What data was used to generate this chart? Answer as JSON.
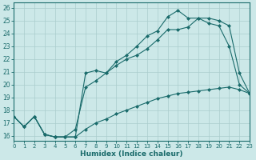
{
  "xlabel": "Humidex (Indice chaleur)",
  "ylabel": "",
  "xlim": [
    0,
    23
  ],
  "ylim": [
    15.6,
    26.4
  ],
  "yticks": [
    16,
    17,
    18,
    19,
    20,
    21,
    22,
    23,
    24,
    25,
    26
  ],
  "xticks": [
    0,
    1,
    2,
    3,
    4,
    5,
    6,
    7,
    8,
    9,
    10,
    11,
    12,
    13,
    14,
    15,
    16,
    17,
    18,
    19,
    20,
    21,
    22,
    23
  ],
  "bg_color": "#cce8e8",
  "grid_color": "#aacccc",
  "line_color": "#1a6b6b",
  "line1_y": [
    17.5,
    16.7,
    17.5,
    16.1,
    15.9,
    15.9,
    15.9,
    20.9,
    21.1,
    20.9,
    21.8,
    22.3,
    23.0,
    23.8,
    24.2,
    25.3,
    25.8,
    25.2,
    25.2,
    24.8,
    24.6,
    23.0,
    20.0,
    19.3
  ],
  "line2_y": [
    17.5,
    16.7,
    17.5,
    16.1,
    15.9,
    15.9,
    16.5,
    19.8,
    20.3,
    20.9,
    21.5,
    22.0,
    22.3,
    22.8,
    23.5,
    24.3,
    24.3,
    24.5,
    25.2,
    25.2,
    25.0,
    24.6,
    20.9,
    19.3
  ],
  "line3_y": [
    17.5,
    16.7,
    17.5,
    16.1,
    15.9,
    15.9,
    15.9,
    16.5,
    17.0,
    17.3,
    17.7,
    18.0,
    18.3,
    18.6,
    18.9,
    19.1,
    19.3,
    19.4,
    19.5,
    19.6,
    19.7,
    19.8,
    19.6,
    19.3
  ]
}
